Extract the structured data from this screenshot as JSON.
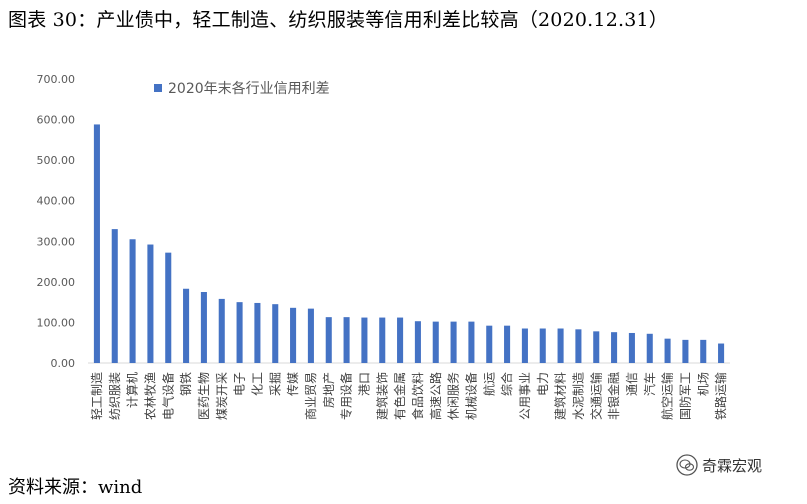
{
  "title": "图表 30：产业债中，轻工制造、纺织服装等信用利差比较高（2020.12.31）",
  "source": "资料来源：wind",
  "brand": {
    "name": "奇霖宏观",
    "logo_icon": "wechat-logo-icon"
  },
  "chart_data": {
    "type": "bar",
    "series": [
      {
        "name": "2020年末各行业信用利差",
        "color": "#4472C4",
        "values": [
          588,
          330,
          305,
          292,
          272,
          183,
          175,
          158,
          150,
          148,
          145,
          136,
          134,
          113,
          113,
          112,
          112,
          112,
          103,
          102,
          102,
          102,
          92,
          92,
          85,
          85,
          85,
          83,
          78,
          76,
          74,
          72,
          60,
          57,
          57,
          48
        ]
      }
    ],
    "categories": [
      "轻工制造",
      "纺织服装",
      "计算机",
      "农林牧渔",
      "电气设备",
      "钢铁",
      "医药生物",
      "煤炭开采",
      "电子",
      "化工",
      "采掘",
      "传媒",
      "商业贸易",
      "房地产",
      "专用设备",
      "港口",
      "建筑装饰",
      "有色金属",
      "食品饮料",
      "高速公路",
      "休闲服务",
      "机械设备",
      "航运",
      "综合",
      "公用事业",
      "电力",
      "建筑材料",
      "水泥制造",
      "交通运输",
      "非银金融",
      "通信",
      "汽车",
      "航空运输",
      "国防军工",
      "机场",
      "铁路运输"
    ],
    "ylim": [
      0,
      700
    ],
    "yticks": [
      "0.00",
      "100.00",
      "200.00",
      "300.00",
      "400.00",
      "500.00",
      "600.00",
      "700.00"
    ],
    "legend": "top-left",
    "grid": false,
    "xlabel": "",
    "ylabel": ""
  }
}
